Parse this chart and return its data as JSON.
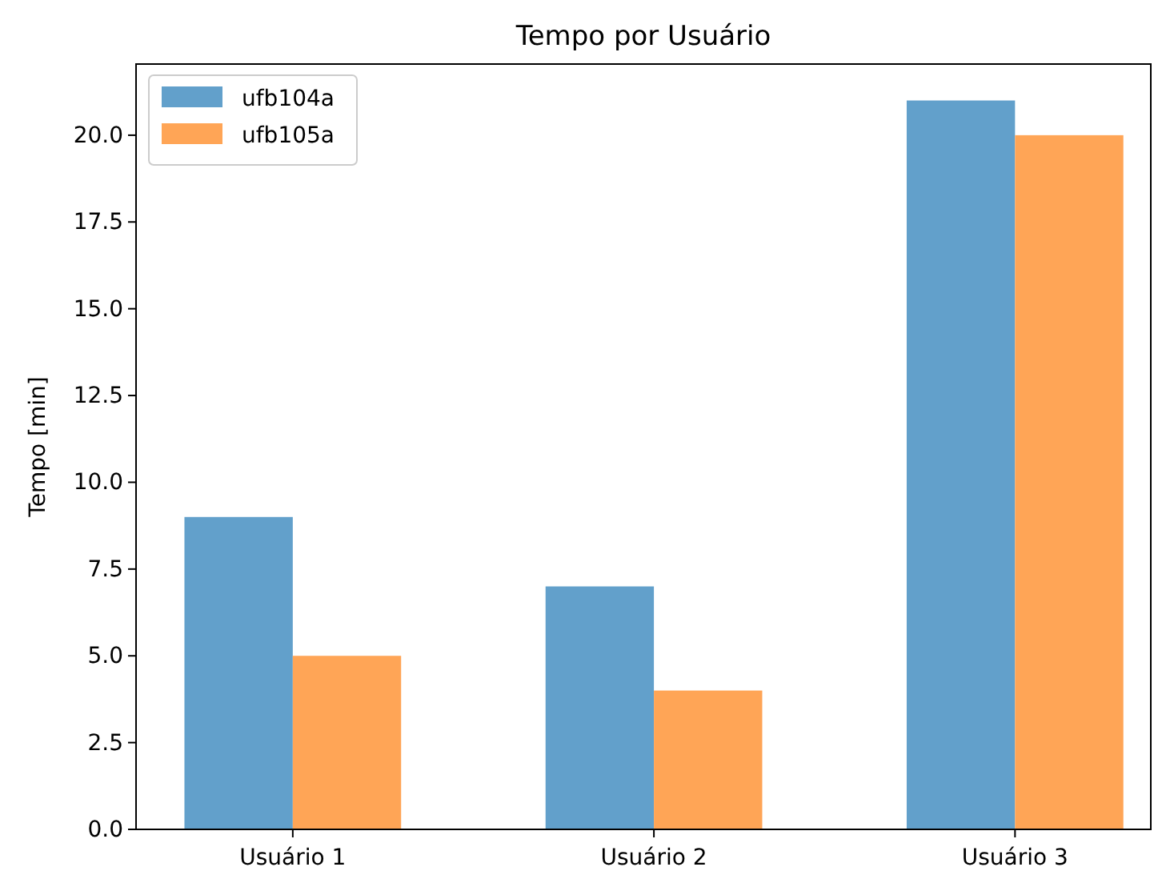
{
  "chart_data": {
    "type": "bar",
    "title": "Tempo por Usuário",
    "ylabel": "Tempo [min]",
    "categories": [
      "Usuário 1",
      "Usuário 2",
      "Usuário 3"
    ],
    "series": [
      {
        "name": "ufb104a",
        "color": "#62a0cb",
        "values": [
          9,
          7,
          21
        ]
      },
      {
        "name": "ufb105a",
        "color": "#ffa556",
        "values": [
          5,
          4,
          20
        ]
      }
    ],
    "ylim": [
      0,
      22.05
    ],
    "yticks": [
      {
        "value": 0,
        "label": "0.0"
      },
      {
        "value": 2.5,
        "label": "2.5"
      },
      {
        "value": 5,
        "label": "5.0"
      },
      {
        "value": 7.5,
        "label": "7.5"
      },
      {
        "value": 10,
        "label": "10.0"
      },
      {
        "value": 12.5,
        "label": "12.5"
      },
      {
        "value": 15,
        "label": "15.0"
      },
      {
        "value": 17.5,
        "label": "17.5"
      },
      {
        "value": 20,
        "label": "20.0"
      }
    ],
    "legend": "top left",
    "grid": false
  }
}
